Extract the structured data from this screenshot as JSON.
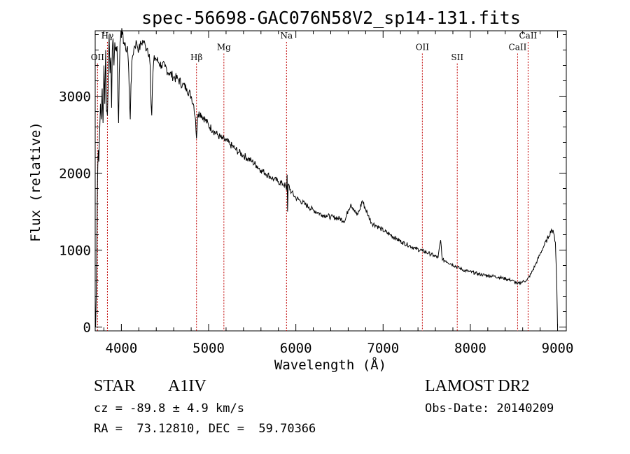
{
  "chart_data": {
    "type": "line",
    "title": "spec-56698-GAC076N58V2_sp14-131.fits",
    "xlabel": "Wavelength (Å)",
    "ylabel": "Flux (relative)",
    "xlim": [
      3700,
      9100
    ],
    "ylim": [
      -50,
      3850
    ],
    "xticks": [
      4000,
      5000,
      6000,
      7000,
      8000,
      9000
    ],
    "yticks": [
      0,
      1000,
      2000,
      3000
    ],
    "grid": false,
    "line_color": "#000000",
    "marker_color": "#c00000",
    "spectral_lines": [
      {
        "label": "OII",
        "x": 3727,
        "label_y": 3470
      },
      {
        "label": "Hγ",
        "x": 3840,
        "label_y": 3750
      },
      {
        "label": "Hβ",
        "x": 4861,
        "label_y": 3470
      },
      {
        "label": "Mg",
        "x": 5175,
        "label_y": 3600
      },
      {
        "label": "Na",
        "x": 5893,
        "label_y": 3750
      },
      {
        "label": "OII",
        "x": 7450,
        "label_y": 3600
      },
      {
        "label": "SII",
        "x": 7850,
        "label_y": 3470
      },
      {
        "label": "CaII",
        "x": 8542,
        "label_y": 3600
      },
      {
        "label": "CaII",
        "x": 8662,
        "label_y": 3750
      }
    ],
    "series": [
      {
        "values": [
          [
            3705,
            0
          ],
          [
            3712,
            420
          ],
          [
            3718,
            900
          ],
          [
            3724,
            1700
          ],
          [
            3730,
            2100
          ],
          [
            3736,
            2300
          ],
          [
            3742,
            2150
          ],
          [
            3750,
            2500
          ],
          [
            3760,
            2900
          ],
          [
            3770,
            2700
          ],
          [
            3780,
            3100
          ],
          [
            3790,
            2650
          ],
          [
            3800,
            3400
          ],
          [
            3810,
            2900
          ],
          [
            3820,
            3600
          ],
          [
            3830,
            2800
          ],
          [
            3840,
            2750
          ],
          [
            3850,
            3200
          ],
          [
            3860,
            3800
          ],
          [
            3870,
            3300
          ],
          [
            3880,
            3500
          ],
          [
            3888,
            2850
          ],
          [
            3896,
            3600
          ],
          [
            3905,
            3750
          ],
          [
            3915,
            3400
          ],
          [
            3925,
            3700
          ],
          [
            3935,
            3600
          ],
          [
            3950,
            3650
          ],
          [
            3960,
            3000
          ],
          [
            3968,
            2650
          ],
          [
            3976,
            3300
          ],
          [
            3985,
            3700
          ],
          [
            3995,
            3850
          ],
          [
            4010,
            3800
          ],
          [
            4030,
            3700
          ],
          [
            4050,
            3600
          ],
          [
            4070,
            3650
          ],
          [
            4085,
            3300
          ],
          [
            4095,
            2900
          ],
          [
            4102,
            2700
          ],
          [
            4110,
            3150
          ],
          [
            4125,
            3500
          ],
          [
            4150,
            3650
          ],
          [
            4175,
            3700
          ],
          [
            4200,
            3600
          ],
          [
            4225,
            3680
          ],
          [
            4250,
            3720
          ],
          [
            4275,
            3650
          ],
          [
            4300,
            3620
          ],
          [
            4320,
            3550
          ],
          [
            4330,
            3400
          ],
          [
            4340,
            2900
          ],
          [
            4348,
            2750
          ],
          [
            4356,
            3150
          ],
          [
            4370,
            3450
          ],
          [
            4390,
            3500
          ],
          [
            4420,
            3450
          ],
          [
            4460,
            3400
          ],
          [
            4500,
            3380
          ],
          [
            4550,
            3300
          ],
          [
            4600,
            3250
          ],
          [
            4650,
            3220
          ],
          [
            4700,
            3150
          ],
          [
            4750,
            3100
          ],
          [
            4800,
            3000
          ],
          [
            4830,
            2880
          ],
          [
            4850,
            2700
          ],
          [
            4861,
            2450
          ],
          [
            4872,
            2700
          ],
          [
            4890,
            2800
          ],
          [
            4920,
            2750
          ],
          [
            4960,
            2700
          ],
          [
            5000,
            2620
          ],
          [
            5050,
            2560
          ],
          [
            5100,
            2500
          ],
          [
            5150,
            2450
          ],
          [
            5200,
            2420
          ],
          [
            5250,
            2370
          ],
          [
            5300,
            2320
          ],
          [
            5350,
            2270
          ],
          [
            5400,
            2230
          ],
          [
            5450,
            2190
          ],
          [
            5500,
            2150
          ],
          [
            5550,
            2100
          ],
          [
            5600,
            2040
          ],
          [
            5650,
            2000
          ],
          [
            5700,
            1960
          ],
          [
            5750,
            1920
          ],
          [
            5800,
            1890
          ],
          [
            5850,
            1860
          ],
          [
            5880,
            1840
          ],
          [
            5893,
            1780
          ],
          [
            5900,
            1980
          ],
          [
            5905,
            1500
          ],
          [
            5912,
            1850
          ],
          [
            5950,
            1750
          ],
          [
            6000,
            1680
          ],
          [
            6050,
            1640
          ],
          [
            6100,
            1600
          ],
          [
            6150,
            1560
          ],
          [
            6200,
            1520
          ],
          [
            6250,
            1490
          ],
          [
            6300,
            1460
          ],
          [
            6350,
            1450
          ],
          [
            6400,
            1430
          ],
          [
            6450,
            1420
          ],
          [
            6500,
            1410
          ],
          [
            6563,
            1380
          ],
          [
            6600,
            1520
          ],
          [
            6630,
            1600
          ],
          [
            6660,
            1540
          ],
          [
            6700,
            1450
          ],
          [
            6730,
            1520
          ],
          [
            6760,
            1640
          ],
          [
            6790,
            1560
          ],
          [
            6830,
            1450
          ],
          [
            6870,
            1350
          ],
          [
            6920,
            1320
          ],
          [
            6970,
            1280
          ],
          [
            7020,
            1240
          ],
          [
            7080,
            1200
          ],
          [
            7150,
            1150
          ],
          [
            7220,
            1100
          ],
          [
            7300,
            1060
          ],
          [
            7370,
            1020
          ],
          [
            7450,
            990
          ],
          [
            7520,
            960
          ],
          [
            7580,
            930
          ],
          [
            7630,
            900
          ],
          [
            7660,
            1130
          ],
          [
            7680,
            870
          ],
          [
            7720,
            860
          ],
          [
            7780,
            820
          ],
          [
            7850,
            780
          ],
          [
            7920,
            740
          ],
          [
            7990,
            720
          ],
          [
            8060,
            700
          ],
          [
            8130,
            680
          ],
          [
            8200,
            670
          ],
          [
            8270,
            660
          ],
          [
            8340,
            645
          ],
          [
            8410,
            625
          ],
          [
            8480,
            605
          ],
          [
            8542,
            560
          ],
          [
            8600,
            590
          ],
          [
            8650,
            610
          ],
          [
            8700,
            700
          ],
          [
            8750,
            820
          ],
          [
            8800,
            950
          ],
          [
            8850,
            1070
          ],
          [
            8900,
            1180
          ],
          [
            8930,
            1270
          ],
          [
            8955,
            1220
          ],
          [
            8975,
            1100
          ],
          [
            8990,
            600
          ],
          [
            9000,
            0
          ]
        ]
      }
    ]
  },
  "info": {
    "object_class": "STAR",
    "subclass": "A1IV",
    "survey": "LAMOST DR2",
    "redshift": "cz = -89.8 ± 4.9 km/s",
    "obs_date": "Obs-Date: 20140209",
    "coords": "RA =  73.12810, DEC =  59.70366"
  }
}
